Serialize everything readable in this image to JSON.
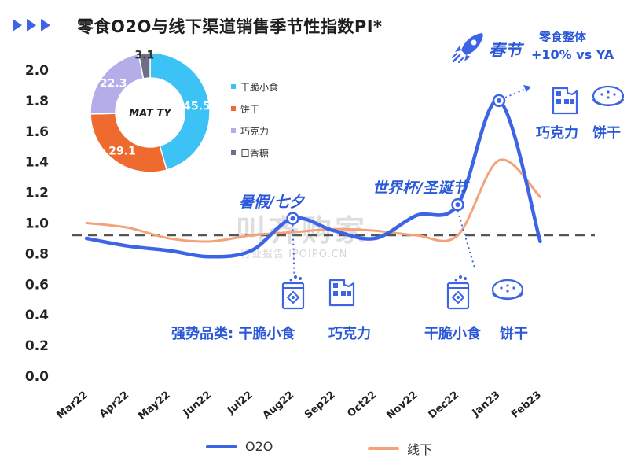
{
  "title": "零食O2O与线下渠道销售季节性指数PI*",
  "chart_data": {
    "type": "line",
    "categories": [
      "Mar22",
      "Apr22",
      "May22",
      "Jun22",
      "Jul22",
      "Aug22",
      "Sep22",
      "Oct22",
      "Nov22",
      "Dec22",
      "Jan23",
      "Feb23"
    ],
    "ylim": [
      0,
      2.0
    ],
    "yticks": [
      "0.0",
      "0.2",
      "0.4",
      "0.6",
      "0.8",
      "1.0",
      "1.2",
      "1.4",
      "1.6",
      "1.8",
      "2.0"
    ],
    "reference_line": 0.92,
    "series": [
      {
        "name": "O2O",
        "color": "#3c64e6",
        "values": [
          0.9,
          0.85,
          0.82,
          0.78,
          0.82,
          1.03,
          0.95,
          0.9,
          1.05,
          1.12,
          1.8,
          0.88
        ]
      },
      {
        "name": "线下",
        "color": "#f4a27a",
        "values": [
          1.0,
          0.97,
          0.9,
          0.88,
          0.92,
          0.94,
          0.96,
          0.95,
          0.92,
          0.92,
          1.41,
          1.17
        ]
      }
    ]
  },
  "donut": {
    "center_label": "MAT TY",
    "slices": [
      {
        "name": "干脆小食",
        "value": 45.5,
        "label": "45.5",
        "color": "#3dc2f5"
      },
      {
        "name": "饼干",
        "value": 29.1,
        "label": "29.1",
        "color": "#ee6a2e"
      },
      {
        "name": "巧克力",
        "value": 22.3,
        "label": "22.3",
        "color": "#b3aee9"
      },
      {
        "name": "口香糖",
        "value": 3.1,
        "label": "3.1",
        "color": "#6d6e89"
      }
    ]
  },
  "annotations": {
    "summer": "暑假/七夕",
    "worldcup": "世界杯/圣诞节",
    "spring": "春节",
    "overall_line1": "零食整体",
    "overall_line2": "+10% vs YA",
    "strong_label": "强势品类: 干脆小食",
    "strong_chocolate": "巧克力",
    "dec_snack": "干脆小食",
    "dec_biscuit": "饼干",
    "jan_chocolate": "巧克力",
    "jan_biscuit": "饼干"
  },
  "watermark": {
    "main": "叫齐购家",
    "sub": "行业报告 IPOIPO.CN"
  },
  "icons": {
    "rocket": "rocket-icon",
    "snack": "snack-bag-icon",
    "chocolate": "chocolate-bar-icon",
    "biscuit": "biscuit-icon"
  }
}
